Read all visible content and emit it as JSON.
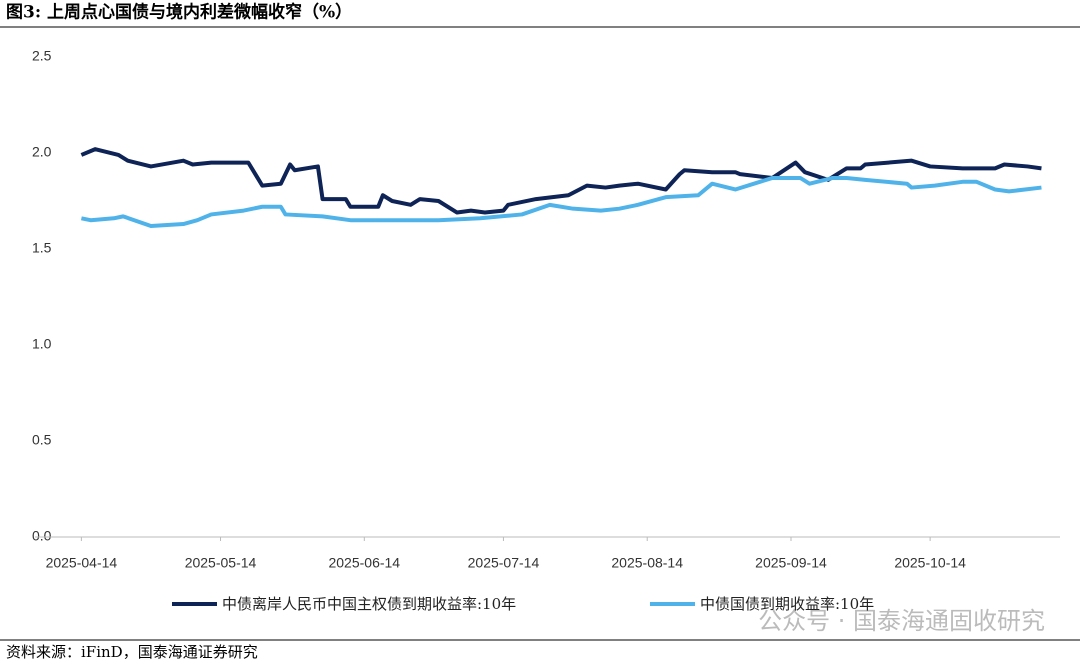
{
  "chart_data": {
    "type": "line",
    "title": "图3:  上周点心国债与境内利差微幅收窄（%）",
    "source": "资料来源：iFinD，国泰海通证券研究",
    "watermark": "公众号 · 国泰海通固收研究",
    "xlim": [
      "2025-04-04",
      "2025-11-11"
    ],
    "xticks": [
      "2025-04-14",
      "2025-05-14",
      "2025-06-14",
      "2025-07-14",
      "2025-08-14",
      "2025-09-14",
      "2025-10-14"
    ],
    "ylim": [
      0,
      2.5
    ],
    "yticks": [
      {
        "value": 0,
        "label": "0.0"
      },
      0.5,
      {
        "value": 1,
        "label": "1.0"
      },
      1.5,
      {
        "value": 2,
        "label": "2.0"
      },
      2.5
    ],
    "grid": false,
    "legend": "bottom",
    "series": [
      {
        "name": "中债离岸人民币中国主权债到期收益率:10年",
        "color": "#0e2356",
        "x": [
          "2025-04-14",
          "2025-04-17",
          "2025-04-22",
          "2025-04-24",
          "2025-04-29",
          "2025-05-06",
          "2025-05-08",
          "2025-05-12",
          "2025-05-20",
          "2025-05-22",
          "2025-05-23",
          "2025-05-27",
          "2025-05-28",
          "2025-05-29",
          "2025-05-30",
          "2025-06-04",
          "2025-06-05",
          "2025-06-10",
          "2025-06-11",
          "2025-06-17",
          "2025-06-18",
          "2025-06-20",
          "2025-06-24",
          "2025-06-26",
          "2025-06-30",
          "2025-07-04",
          "2025-07-07",
          "2025-07-10",
          "2025-07-14",
          "2025-07-15",
          "2025-07-21",
          "2025-07-28",
          "2025-08-01",
          "2025-08-05",
          "2025-08-08",
          "2025-08-12",
          "2025-08-18",
          "2025-08-21",
          "2025-08-22",
          "2025-08-28",
          "2025-09-02",
          "2025-09-03",
          "2025-09-10",
          "2025-09-15",
          "2025-09-17",
          "2025-09-22",
          "2025-09-26",
          "2025-09-29",
          "2025-09-30",
          "2025-10-10",
          "2025-10-14",
          "2025-10-21",
          "2025-10-28",
          "2025-10-30",
          "2025-11-04",
          "2025-11-07"
        ],
        "values": [
          1.99,
          2.02,
          1.99,
          1.96,
          1.93,
          1.96,
          1.94,
          1.95,
          1.95,
          1.87,
          1.83,
          1.84,
          1.89,
          1.94,
          1.91,
          1.93,
          1.76,
          1.76,
          1.72,
          1.72,
          1.78,
          1.75,
          1.73,
          1.76,
          1.75,
          1.69,
          1.7,
          1.69,
          1.7,
          1.73,
          1.76,
          1.78,
          1.83,
          1.82,
          1.83,
          1.84,
          1.81,
          1.89,
          1.91,
          1.9,
          1.9,
          1.89,
          1.87,
          1.95,
          1.9,
          1.86,
          1.92,
          1.92,
          1.94,
          1.96,
          1.93,
          1.92,
          1.92,
          1.94,
          1.93,
          1.92
        ]
      },
      {
        "name": "中债国债到期收益率:10年",
        "color": "#4fb3ea",
        "x": [
          "2025-04-14",
          "2025-04-16",
          "2025-04-21",
          "2025-04-23",
          "2025-04-29",
          "2025-05-06",
          "2025-05-09",
          "2025-05-12",
          "2025-05-19",
          "2025-05-23",
          "2025-05-27",
          "2025-05-28",
          "2025-06-05",
          "2025-06-11",
          "2025-06-23",
          "2025-06-30",
          "2025-07-09",
          "2025-07-18",
          "2025-07-24",
          "2025-07-29",
          "2025-08-04",
          "2025-08-08",
          "2025-08-12",
          "2025-08-18",
          "2025-08-25",
          "2025-08-28",
          "2025-09-02",
          "2025-09-10",
          "2025-09-16",
          "2025-09-18",
          "2025-09-23",
          "2025-09-26",
          "2025-09-30",
          "2025-10-09",
          "2025-10-10",
          "2025-10-15",
          "2025-10-21",
          "2025-10-24",
          "2025-10-28",
          "2025-10-31",
          "2025-11-07"
        ],
        "values": [
          1.66,
          1.65,
          1.66,
          1.67,
          1.62,
          1.63,
          1.65,
          1.68,
          1.7,
          1.72,
          1.72,
          1.68,
          1.67,
          1.65,
          1.65,
          1.65,
          1.66,
          1.68,
          1.73,
          1.71,
          1.7,
          1.71,
          1.73,
          1.77,
          1.78,
          1.84,
          1.81,
          1.87,
          1.87,
          1.84,
          1.87,
          1.87,
          1.86,
          1.84,
          1.82,
          1.83,
          1.85,
          1.85,
          1.81,
          1.8,
          1.82
        ]
      }
    ]
  }
}
